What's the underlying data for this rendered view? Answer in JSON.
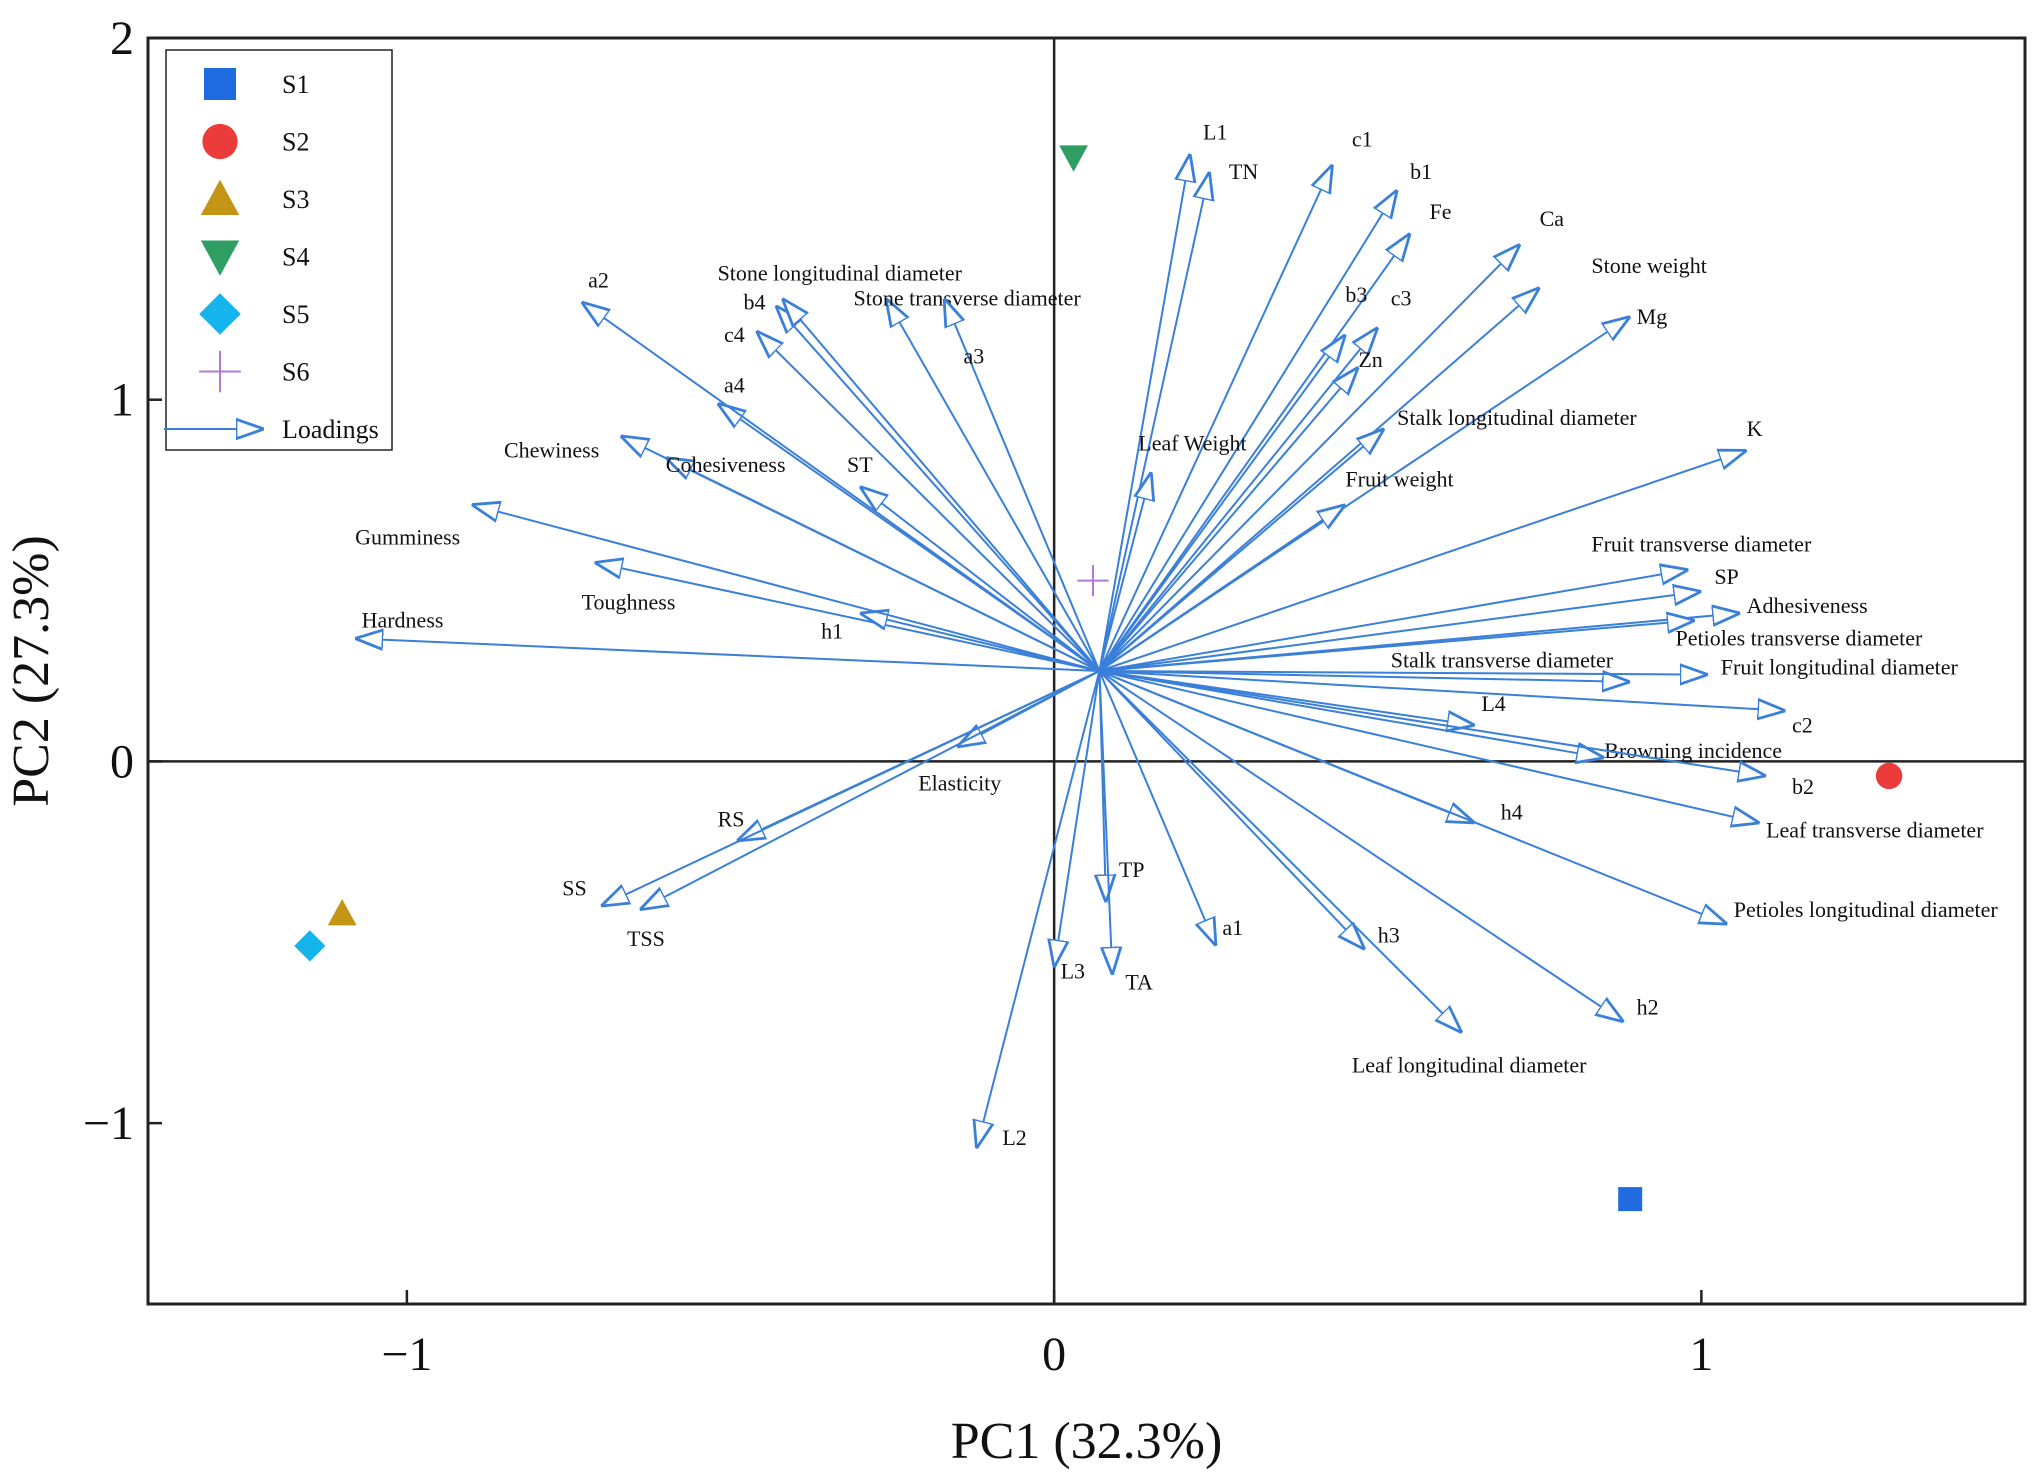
{
  "chart_data": {
    "type": "scatter",
    "title": "",
    "xlabel": "PC1 (32.3%)",
    "ylabel": "PC2 (27.3%)",
    "xlim": [
      -1.4,
      1.5
    ],
    "ylim": [
      -1.5,
      2.0
    ],
    "x_ticks": [
      {
        "v": -1,
        "t": "−1"
      },
      {
        "v": 0,
        "t": "0"
      },
      {
        "v": 1,
        "t": "1"
      }
    ],
    "y_ticks": [
      {
        "v": -1,
        "t": "−1"
      },
      {
        "v": 0,
        "t": "0"
      },
      {
        "v": 1,
        "t": "1"
      },
      {
        "v": 2,
        "t": "2"
      }
    ],
    "origin": [
      0.07,
      0.25
    ],
    "arrow_color": "#3a7fd8",
    "legend": {
      "position": "top-left",
      "entries": [
        {
          "name": "S1",
          "marker": "square",
          "color": "#1f6be0"
        },
        {
          "name": "S2",
          "marker": "circle",
          "color": "#ec3b3b"
        },
        {
          "name": "S3",
          "marker": "triangle-up",
          "color": "#c49414"
        },
        {
          "name": "S4",
          "marker": "triangle-down",
          "color": "#2e9e62"
        },
        {
          "name": "S5",
          "marker": "diamond",
          "color": "#16b4ec"
        },
        {
          "name": "S6",
          "marker": "plus",
          "color": "#b07ad8"
        },
        {
          "name": "Loadings",
          "marker": "arrow",
          "color": "#3a7fd8"
        }
      ]
    },
    "samples": [
      {
        "name": "S1",
        "x": 0.89,
        "y": -1.21,
        "marker": "square",
        "color": "#1f6be0"
      },
      {
        "name": "S2",
        "x": 1.29,
        "y": -0.04,
        "marker": "circle",
        "color": "#ec3b3b"
      },
      {
        "name": "S3",
        "x": -1.1,
        "y": -0.42,
        "marker": "triangle-up",
        "color": "#c49414"
      },
      {
        "name": "S4",
        "x": 0.03,
        "y": 1.67,
        "marker": "triangle-down",
        "color": "#2e9e62"
      },
      {
        "name": "S5",
        "x": -1.15,
        "y": -0.51,
        "marker": "diamond",
        "color": "#16b4ec"
      },
      {
        "name": "S6",
        "x": 0.06,
        "y": 0.5,
        "marker": "plus",
        "color": "#b07ad8"
      }
    ],
    "loadings": [
      {
        "name": "L1",
        "x": 0.21,
        "y": 1.68,
        "lx": 0.23,
        "ly": 1.72
      },
      {
        "name": "TN",
        "x": 0.24,
        "y": 1.63,
        "lx": 0.27,
        "ly": 1.61
      },
      {
        "name": "c1",
        "x": 0.43,
        "y": 1.65,
        "lx": 0.46,
        "ly": 1.7
      },
      {
        "name": "b1",
        "x": 0.53,
        "y": 1.58,
        "lx": 0.55,
        "ly": 1.61
      },
      {
        "name": "Fe",
        "x": 0.55,
        "y": 1.46,
        "lx": 0.58,
        "ly": 1.5
      },
      {
        "name": "Ca",
        "x": 0.72,
        "y": 1.43,
        "lx": 0.75,
        "ly": 1.48
      },
      {
        "name": "Stone weight",
        "x": 0.75,
        "y": 1.31,
        "lx": 0.83,
        "ly": 1.35
      },
      {
        "name": "Mg",
        "x": 0.89,
        "y": 1.23,
        "lx": 0.9,
        "ly": 1.21
      },
      {
        "name": "b3",
        "x": 0.45,
        "y": 1.18,
        "lx": 0.45,
        "ly": 1.27
      },
      {
        "name": "c3",
        "x": 0.5,
        "y": 1.2,
        "lx": 0.52,
        "ly": 1.26
      },
      {
        "name": "Zn",
        "x": 0.47,
        "y": 1.09,
        "lx": 0.47,
        "ly": 1.09
      },
      {
        "name": "Stalk longitudinal diameter",
        "x": 0.51,
        "y": 0.92,
        "lx": 0.53,
        "ly": 0.93
      },
      {
        "name": "K",
        "x": 1.07,
        "y": 0.86,
        "lx": 1.07,
        "ly": 0.9
      },
      {
        "name": "Leaf Weight",
        "x": 0.15,
        "y": 0.8,
        "lx": 0.13,
        "ly": 0.86
      },
      {
        "name": "Fruit weight",
        "x": 0.45,
        "y": 0.71,
        "lx": 0.45,
        "ly": 0.76
      },
      {
        "name": "Fruit transverse diameter",
        "x": 0.98,
        "y": 0.53,
        "lx": 0.83,
        "ly": 0.58
      },
      {
        "name": "SP",
        "x": 1.0,
        "y": 0.47,
        "lx": 1.02,
        "ly": 0.49
      },
      {
        "name": "Adhesiveness",
        "x": 1.06,
        "y": 0.41,
        "lx": 1.07,
        "ly": 0.41
      },
      {
        "name": "Petioles transverse diameter",
        "x": 0.99,
        "y": 0.39,
        "lx": 0.96,
        "ly": 0.32
      },
      {
        "name": "Stalk transverse diameter",
        "x": 0.89,
        "y": 0.22,
        "lx": 0.52,
        "ly": 0.26
      },
      {
        "name": "Fruit longitudinal diameter",
        "x": 1.01,
        "y": 0.24,
        "lx": 1.03,
        "ly": 0.24
      },
      {
        "name": "c2",
        "x": 1.13,
        "y": 0.14,
        "lx": 1.14,
        "ly": 0.08
      },
      {
        "name": "L4",
        "x": 0.65,
        "y": 0.1,
        "lx": 0.66,
        "ly": 0.14
      },
      {
        "name": "Browning incidence",
        "x": 0.85,
        "y": 0.01,
        "lx": 0.85,
        "ly": 0.01
      },
      {
        "name": "b2",
        "x": 1.1,
        "y": -0.04,
        "lx": 1.14,
        "ly": -0.09
      },
      {
        "name": "Leaf transverse diameter",
        "x": 1.09,
        "y": -0.17,
        "lx": 1.1,
        "ly": -0.21
      },
      {
        "name": "h4",
        "x": 0.65,
        "y": -0.17,
        "lx": 0.69,
        "ly": -0.16
      },
      {
        "name": "Petioles longitudinal diameter",
        "x": 1.04,
        "y": -0.45,
        "lx": 1.05,
        "ly": -0.43
      },
      {
        "name": "h3",
        "x": 0.48,
        "y": -0.52,
        "lx": 0.5,
        "ly": -0.5
      },
      {
        "name": "h2",
        "x": 0.88,
        "y": -0.72,
        "lx": 0.9,
        "ly": -0.7
      },
      {
        "name": "Leaf longitudinal diameter",
        "x": 0.63,
        "y": -0.75,
        "lx": 0.46,
        "ly": -0.86
      },
      {
        "name": "a1",
        "x": 0.25,
        "y": -0.51,
        "lx": 0.26,
        "ly": -0.48
      },
      {
        "name": "TP",
        "x": 0.08,
        "y": -0.39,
        "lx": 0.1,
        "ly": -0.32
      },
      {
        "name": "TA",
        "x": 0.09,
        "y": -0.59,
        "lx": 0.11,
        "ly": -0.63
      },
      {
        "name": "L3",
        "x": 0.0,
        "y": -0.57,
        "lx": 0.01,
        "ly": -0.6
      },
      {
        "name": "L2",
        "x": -0.12,
        "y": -1.07,
        "lx": -0.08,
        "ly": -1.06
      },
      {
        "name": "Elasticity",
        "x": -0.15,
        "y": 0.04,
        "lx": -0.21,
        "ly": -0.08
      },
      {
        "name": "RS",
        "x": -0.49,
        "y": -0.22,
        "lx": -0.52,
        "ly": -0.18
      },
      {
        "name": "SS",
        "x": -0.7,
        "y": -0.4,
        "lx": -0.76,
        "ly": -0.37
      },
      {
        "name": "TSS",
        "x": -0.64,
        "y": -0.41,
        "lx": -0.66,
        "ly": -0.51
      },
      {
        "name": "Hardness",
        "x": -1.08,
        "y": 0.34,
        "lx": -1.07,
        "ly": 0.37
      },
      {
        "name": "Toughness",
        "x": -0.71,
        "y": 0.55,
        "lx": -0.73,
        "ly": 0.42
      },
      {
        "name": "h1",
        "x": -0.3,
        "y": 0.41,
        "lx": -0.36,
        "ly": 0.34
      },
      {
        "name": "Gumminess",
        "x": -0.9,
        "y": 0.71,
        "lx": -1.08,
        "ly": 0.6
      },
      {
        "name": "Chewiness",
        "x": -0.67,
        "y": 0.9,
        "lx": -0.85,
        "ly": 0.84
      },
      {
        "name": "Cohesiveness",
        "x": -0.6,
        "y": 0.84,
        "lx": -0.6,
        "ly": 0.8
      },
      {
        "name": "ST",
        "x": -0.3,
        "y": 0.76,
        "lx": -0.32,
        "ly": 0.8
      },
      {
        "name": "a4",
        "x": -0.52,
        "y": 0.99,
        "lx": -0.51,
        "ly": 1.02
      },
      {
        "name": "c4",
        "x": -0.46,
        "y": 1.19,
        "lx": -0.51,
        "ly": 1.16
      },
      {
        "name": "b4",
        "x": -0.43,
        "y": 1.26,
        "lx": -0.48,
        "ly": 1.25
      },
      {
        "name": "a2",
        "x": -0.73,
        "y": 1.27,
        "lx": -0.72,
        "ly": 1.31
      },
      {
        "name": "Stone longitudinal diameter",
        "x": -0.42,
        "y": 1.28,
        "lx": -0.52,
        "ly": 1.33
      },
      {
        "name": "Stone transverse diameter",
        "x": -0.26,
        "y": 1.28,
        "lx": -0.31,
        "ly": 1.26
      },
      {
        "name": "a3",
        "x": -0.17,
        "y": 1.28,
        "lx": -0.14,
        "ly": 1.1
      }
    ]
  }
}
